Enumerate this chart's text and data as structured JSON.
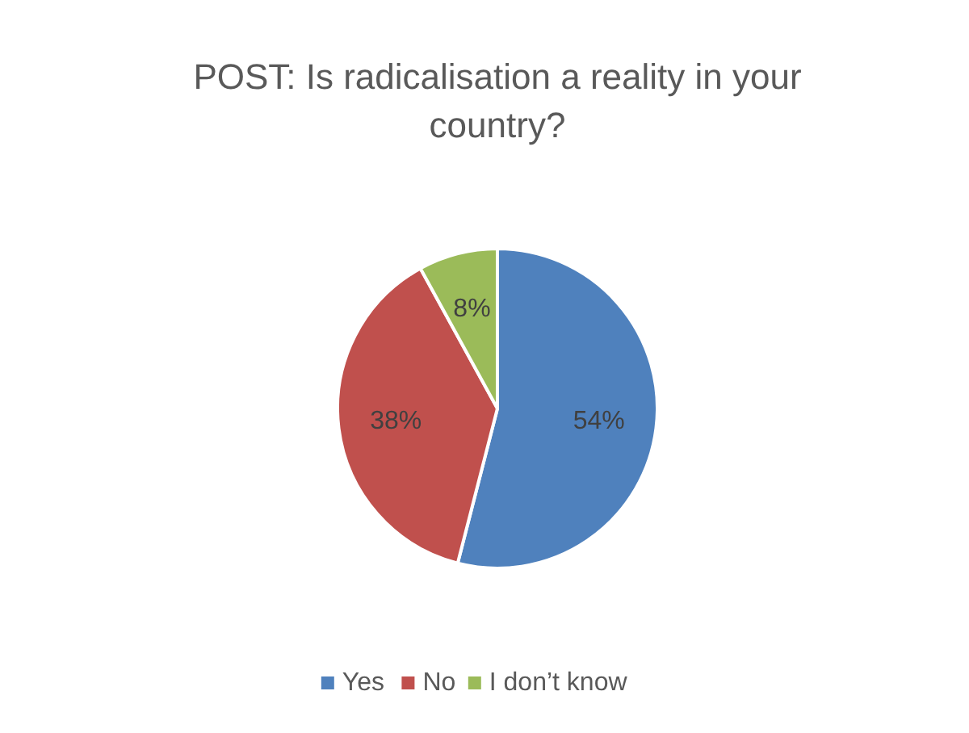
{
  "chart_data": {
    "type": "pie",
    "title": "POST: Is radicalisation a reality in your country?",
    "categories": [
      "Yes",
      "No",
      "I don’t know"
    ],
    "values": [
      54,
      38,
      8
    ],
    "colors": [
      "#4f81bd",
      "#c0504d",
      "#9bbb59"
    ],
    "value_labels": [
      "54%",
      "38%",
      "8%"
    ],
    "legend": "bottom"
  }
}
